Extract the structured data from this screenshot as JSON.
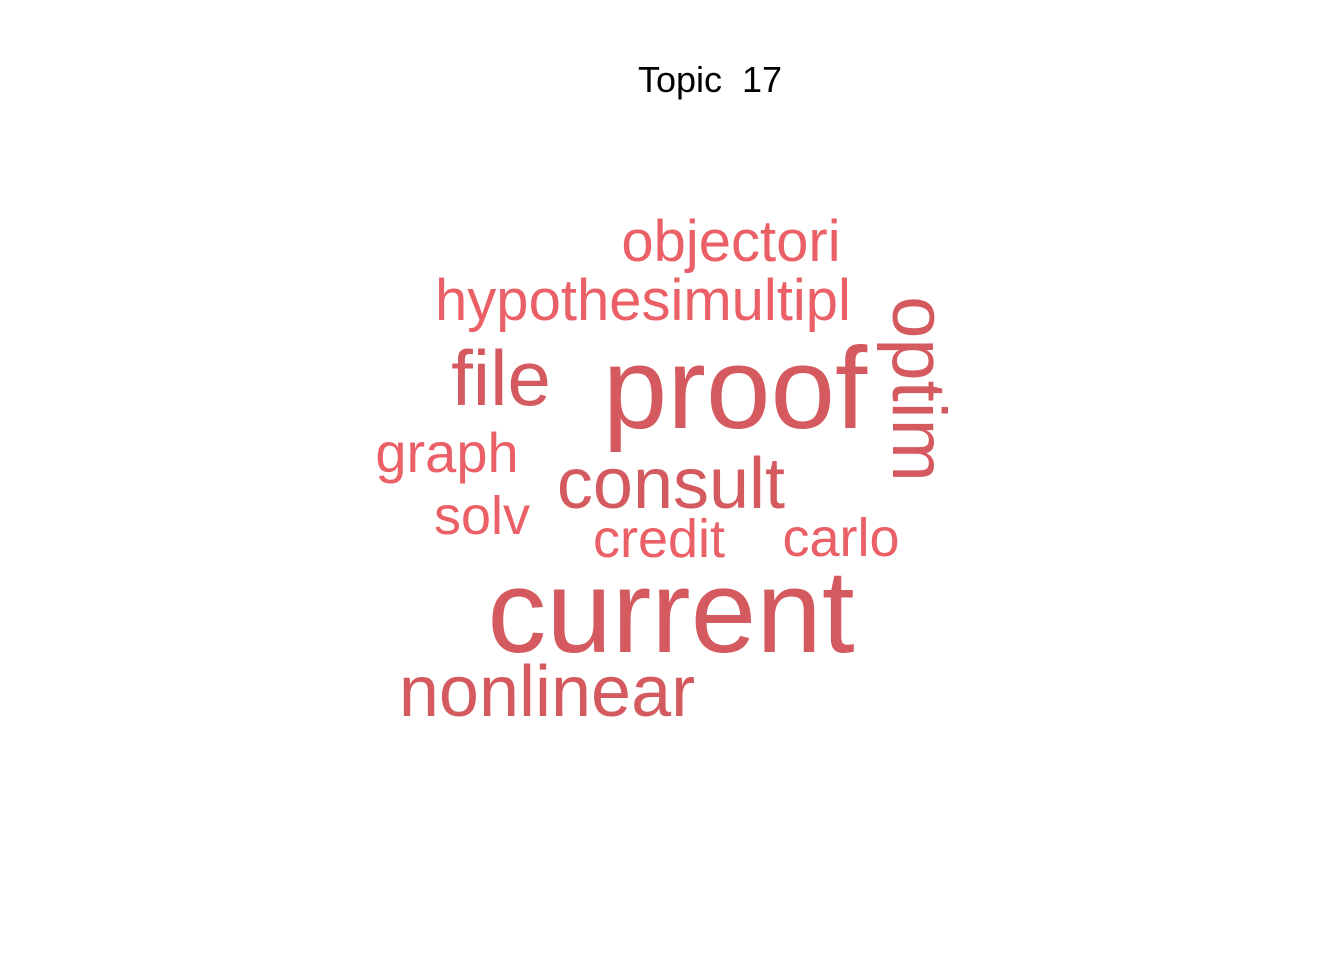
{
  "title": "Topic  17",
  "colors": {
    "background": "#ffffff",
    "title": "#000000",
    "dark_word": "#d45a5f",
    "light_word": "#ea6066"
  },
  "words": [
    {
      "text": "current",
      "tone": "dark"
    },
    {
      "text": "proof",
      "tone": "dark"
    },
    {
      "text": "nonlinear",
      "tone": "dark"
    },
    {
      "text": "consult",
      "tone": "dark"
    },
    {
      "text": "file",
      "tone": "dark"
    },
    {
      "text": "optim",
      "tone": "dark"
    },
    {
      "text": "hypothesimultipl",
      "tone": "light"
    },
    {
      "text": "objectori",
      "tone": "light"
    },
    {
      "text": "graph",
      "tone": "light"
    },
    {
      "text": "solv",
      "tone": "light"
    },
    {
      "text": "credit",
      "tone": "light"
    },
    {
      "text": "carlo",
      "tone": "light"
    }
  ]
}
